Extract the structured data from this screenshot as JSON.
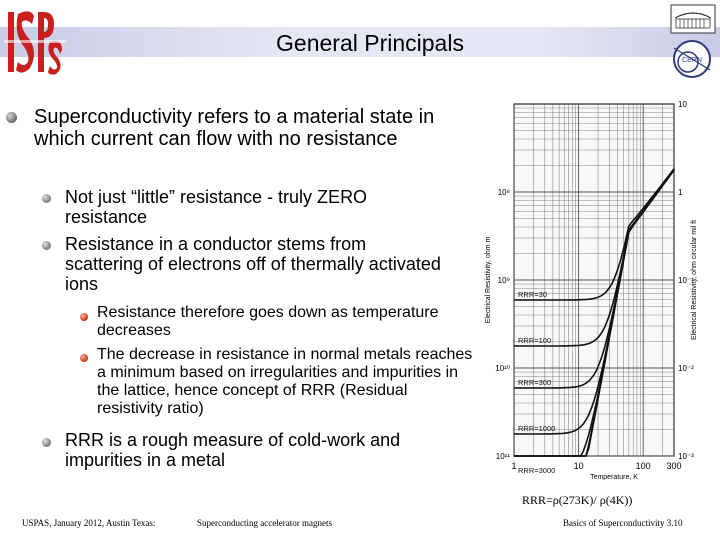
{
  "slide": {
    "title": "General Principals",
    "bullets": {
      "l1_a": "Superconductivity refers to a material state in which current can flow with no resistance",
      "l2_a": "Not just “little” resistance - truly ZERO resistance",
      "l2_b": "Resistance in a conductor stems from scattering of electrons off of thermally activated ions",
      "l3_a": "Resistance therefore goes down as temperature decreases",
      "l3_b": "The decrease in resistance in normal metals reaches a minimum based on irregularities and impurities in the lattice, hence concept of RRR (Residual resistivity ratio)",
      "l2_c": "RRR is a rough measure of cold-work and impurities in a metal"
    },
    "formula_caption": "RRR=ρ(273K)/ ρ(4K))",
    "footer": {
      "left": "USPAS, January 2012, Austin Texas:",
      "center": "Superconducting accelerator magnets",
      "right": "Basics of Superconductivity 3.10"
    }
  },
  "logos": {
    "left": "USPAS",
    "right_top": "building-logo",
    "right_bottom": "CERN"
  },
  "chart_data": {
    "type": "line",
    "title": "",
    "xlabel": "Temperature, K",
    "ylabel_left": "Electrical Resistivity, ohm m",
    "ylabel_right": "Electrical Resistivity, ohm circular mil ft",
    "x_scale": "log",
    "y_scale": "log",
    "x_ticks": [
      "1",
      "10",
      "100",
      "300"
    ],
    "y_ticks_left": [
      "10⁸",
      "10⁹",
      "10¹⁰",
      "10¹¹"
    ],
    "y_ticks_right": [
      "10",
      "1",
      "10⁻¹",
      "10⁻²",
      "10⁻³"
    ],
    "series_labels": [
      "RRR=30",
      "RRR=100",
      "RRR=300",
      "RRR=1000",
      "RRR=3000",
      "RRR=10,000",
      "RRR=30,000"
    ],
    "grid": true
  }
}
